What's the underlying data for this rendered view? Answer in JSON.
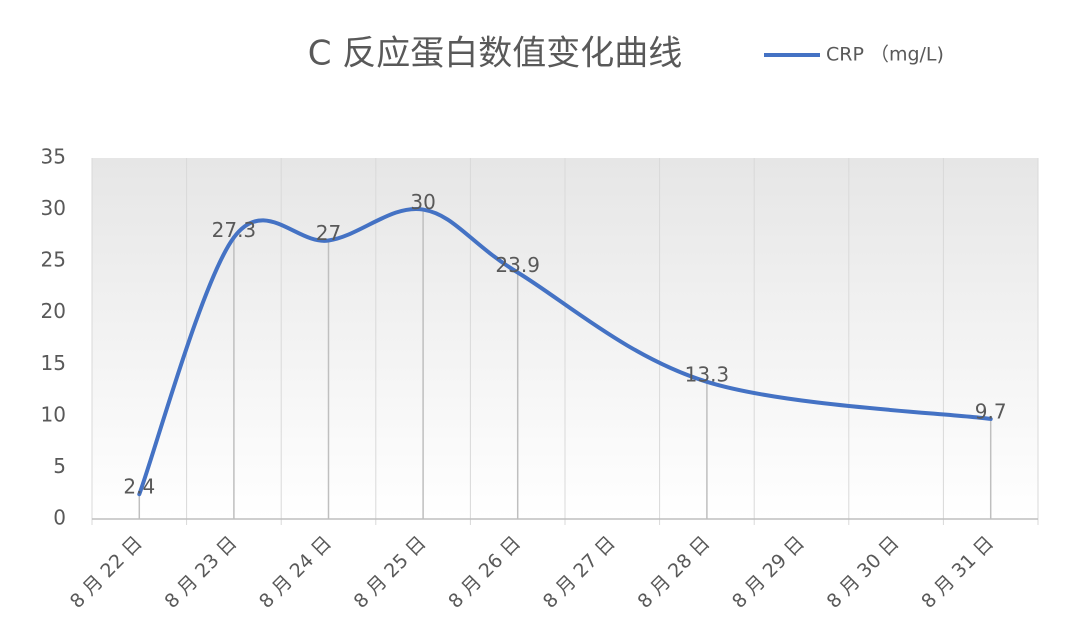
{
  "chart_data": {
    "type": "line",
    "title": "C 反应蛋白数值变化曲线",
    "categories": [
      "8 月 22 日",
      "8 月 23 日",
      "8 月 24 日",
      "8 月 25 日",
      "8 月 26 日",
      "8 月 27 日",
      "8 月 28 日",
      "8 月 29 日",
      "8 月 30 日",
      "8 月 31 日"
    ],
    "series": [
      {
        "name": "CRP （mg/L)",
        "color": "#4472c4",
        "x": [
          "8 月 22 日",
          "8 月 23 日",
          "8 月 24 日",
          "8 月 25 日",
          "8 月 26 日",
          "8 月 28 日",
          "8 月 31 日"
        ],
        "values": [
          2.4,
          27.3,
          27,
          30,
          23.9,
          13.3,
          9.7
        ]
      }
    ],
    "ylim": [
      0,
      35
    ],
    "yticks": [
      0,
      5,
      10,
      15,
      20,
      25,
      30,
      35
    ],
    "smooth": true,
    "drop_lines": true,
    "grid": "vertical",
    "legend": "top-right"
  }
}
